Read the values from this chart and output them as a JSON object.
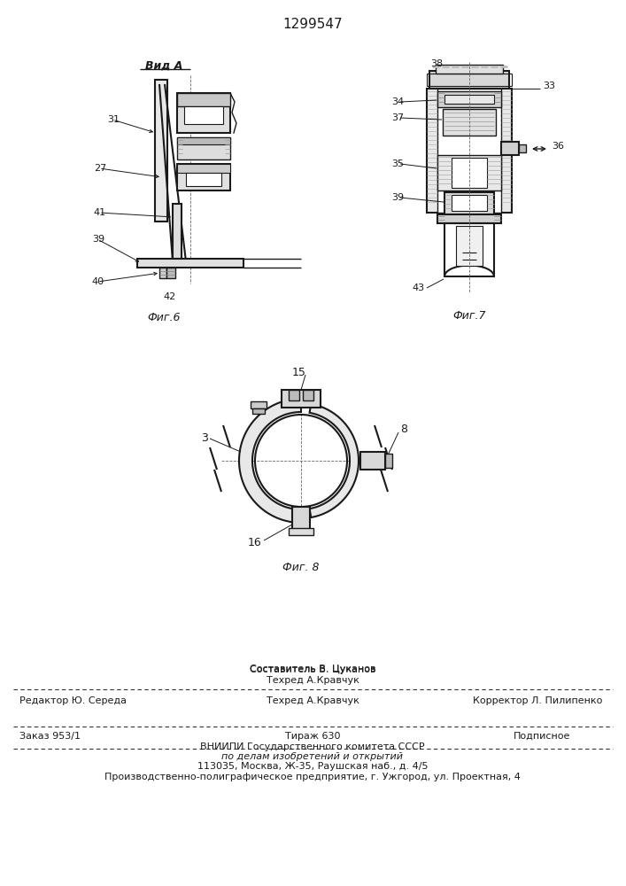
{
  "patent_number": "1299547",
  "background_color": "#ffffff",
  "line_color": "#1a1a1a",
  "fig_width": 7.07,
  "fig_height": 10.0,
  "footer": {
    "line1_left": "Редактор Ю. Середа",
    "line1_center_top": "Составитель В. Цуканов",
    "line1_center_bot": "Техред А.Кравчук",
    "line1_right": "Корректор Л. Пилипенко",
    "line2_left": "Заказ 953/1",
    "line2_center": "Тираж 630",
    "line2_right": "Подписное",
    "line3": "ВНИИПИ Государственного комитета СССР",
    "line4": "по делам изобретений и открытий",
    "line5": "113035, Москва, Ж-35, Раушская наб., д. 4/5",
    "line6": "Производственно-полиграфическое предприятие, г. Ужгород, ул. Проектная, 4"
  }
}
